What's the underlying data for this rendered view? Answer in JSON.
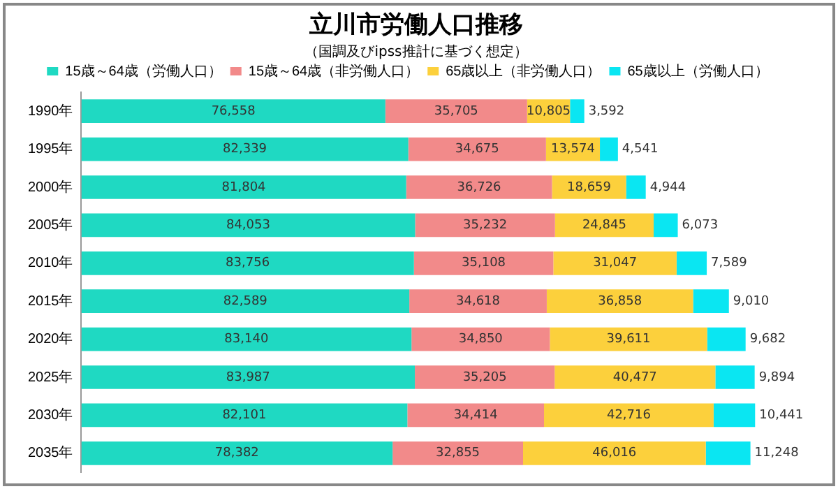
{
  "chart_data": {
    "type": "bar",
    "orientation": "horizontal",
    "stacked": true,
    "title": "立川市労働人口推移",
    "subtitle": "（国調及びipss推計に基づく想定）",
    "categories": [
      "1990年",
      "1995年",
      "2000年",
      "2005年",
      "2010年",
      "2015年",
      "2020年",
      "2025年",
      "2030年",
      "2035年"
    ],
    "series": [
      {
        "name": "15歳～64歳（労働人口）",
        "color": "#1fd9c2",
        "values": [
          76558,
          82339,
          81804,
          84053,
          83756,
          82589,
          83140,
          83987,
          82101,
          78382
        ],
        "value_labels": [
          "76,558",
          "82,339",
          "81,804",
          "84,053",
          "83,756",
          "82,589",
          "83,140",
          "83,987",
          "82,101",
          "78,382"
        ]
      },
      {
        "name": "15歳～64歳（非労働人口）",
        "color": "#f28a8a",
        "values": [
          35705,
          34675,
          36726,
          35232,
          35108,
          34618,
          34850,
          35205,
          34414,
          32855
        ],
        "value_labels": [
          "35,705",
          "34,675",
          "36,726",
          "35,232",
          "35,108",
          "34,618",
          "34,850",
          "35,205",
          "34,414",
          "32,855"
        ]
      },
      {
        "name": "65歳以上（非労働人口）",
        "color": "#fcd03c",
        "values": [
          10805,
          13574,
          18659,
          24845,
          31047,
          36858,
          39611,
          40477,
          42716,
          46016
        ],
        "value_labels": [
          "10,805",
          "13,574",
          "18,659",
          "24,845",
          "31,047",
          "36,858",
          "39,611",
          "40,477",
          "42,716",
          "46,016"
        ]
      },
      {
        "name": "65歳以上（労働人口）",
        "color": "#0ae6f2",
        "values": [
          3592,
          4541,
          4944,
          6073,
          7589,
          9010,
          9682,
          9894,
          10441,
          11248
        ],
        "value_labels": [
          "3,592",
          "4,541",
          "4,944",
          "6,073",
          "7,589",
          "9,010",
          "9,682",
          "9,894",
          "10,441",
          "11,248"
        ]
      }
    ],
    "tick_labels": "y",
    "grid": false,
    "legend": "top"
  }
}
